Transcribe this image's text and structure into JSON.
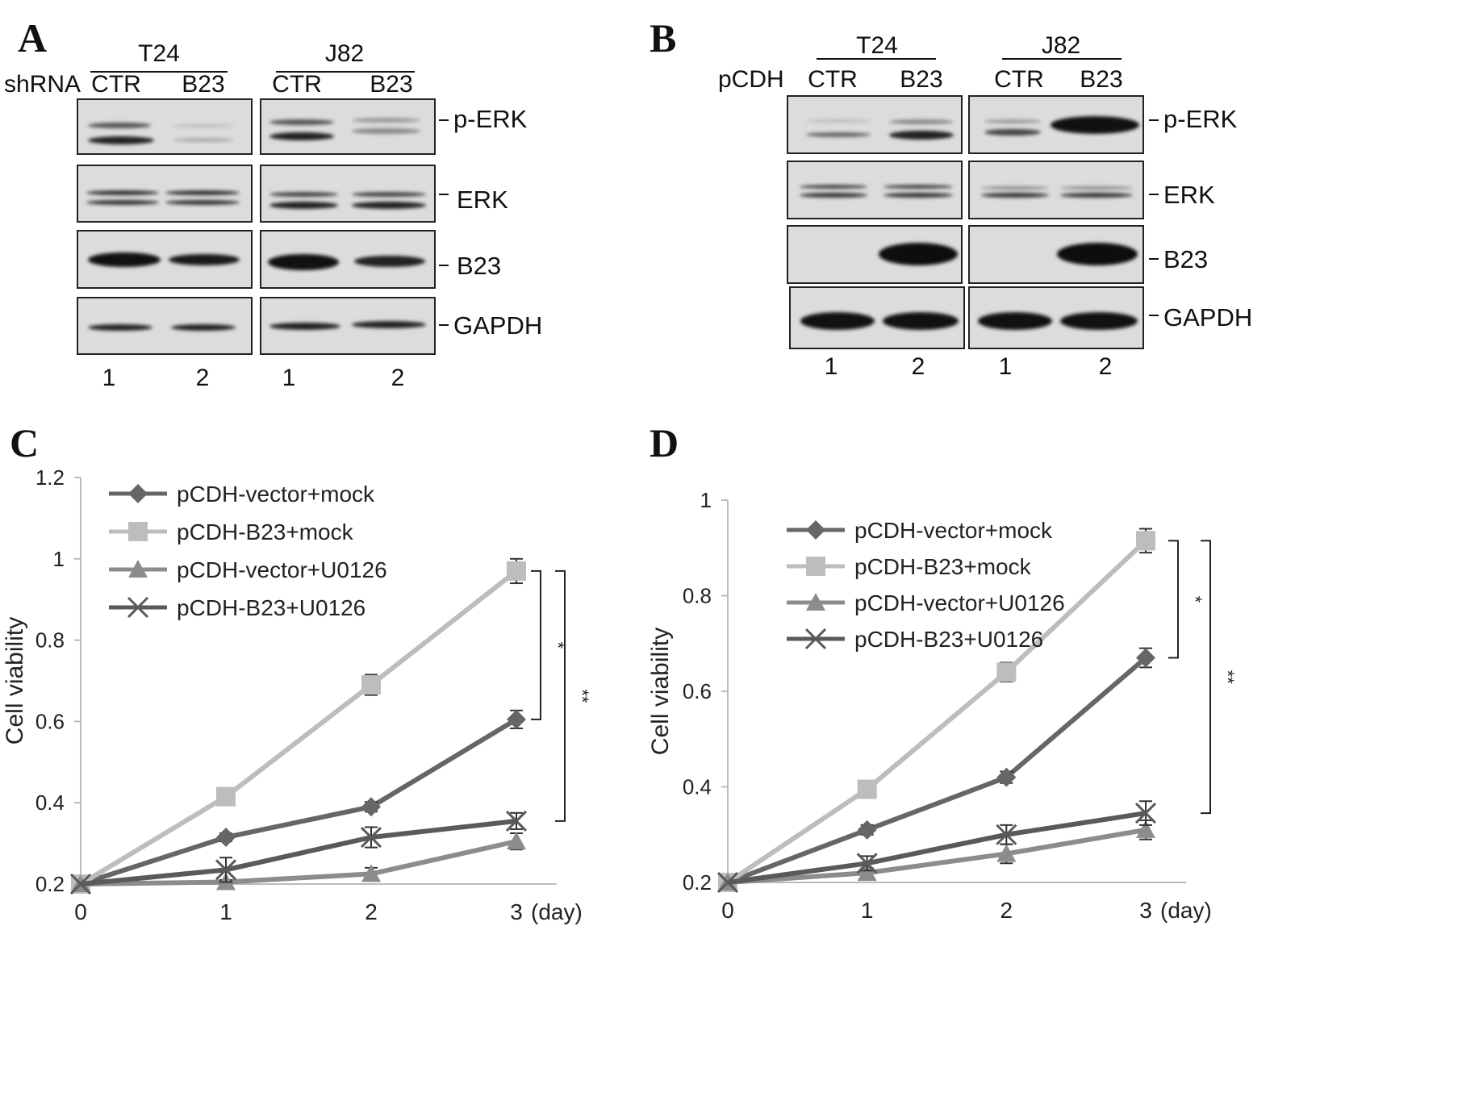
{
  "panel_a": {
    "label": "A",
    "row_label": "shRNA",
    "groups": [
      {
        "name": "T24",
        "lanes": [
          "CTR",
          "B23"
        ],
        "numbers": [
          "1",
          "2"
        ]
      },
      {
        "name": "J82",
        "lanes": [
          "CTR",
          "B23"
        ],
        "numbers": [
          "1",
          "2"
        ]
      }
    ],
    "blots": [
      "p-ERK",
      "ERK",
      "B23",
      "GAPDH"
    ]
  },
  "panel_b": {
    "label": "B",
    "row_label": "pCDH",
    "groups": [
      {
        "name": "T24",
        "lanes": [
          "CTR",
          "B23"
        ],
        "numbers": [
          "1",
          "2"
        ]
      },
      {
        "name": "J82",
        "lanes": [
          "CTR",
          "B23"
        ],
        "numbers": [
          "1",
          "2"
        ]
      }
    ],
    "blots": [
      "p-ERK",
      "ERK",
      "B23",
      "GAPDH"
    ]
  },
  "chart_data": [
    {
      "panel": "C",
      "type": "line",
      "x": [
        0,
        1,
        2,
        3
      ],
      "x_tick_labels": [
        "0",
        "1",
        "2",
        "3"
      ],
      "x_unit": "(day)",
      "ylabel": "Cell viability",
      "ylim": [
        0.2,
        1.2
      ],
      "yticks": [
        "0.2",
        "0.4",
        "0.6",
        "0.8",
        "1",
        "1.2"
      ],
      "legend_position": "top-left",
      "series": [
        {
          "name": "pCDH-vector+mock",
          "marker": "diamond",
          "color": "#666666",
          "values": [
            0.2,
            0.315,
            0.39,
            0.605
          ],
          "errors": [
            0,
            0.01,
            0.012,
            0.022
          ]
        },
        {
          "name": "pCDH-B23+mock",
          "marker": "square",
          "color": "#bdbdbd",
          "values": [
            0.2,
            0.415,
            0.69,
            0.97
          ],
          "errors": [
            0,
            0.015,
            0.025,
            0.03
          ]
        },
        {
          "name": "pCDH-vector+U0126",
          "marker": "triangle",
          "color": "#8c8c8c",
          "values": [
            0.2,
            0.205,
            0.225,
            0.305
          ],
          "errors": [
            0,
            0.005,
            0.015,
            0.02
          ]
        },
        {
          "name": "pCDH-B23+U0126",
          "marker": "x",
          "color": "#5a5a5a",
          "values": [
            0.2,
            0.235,
            0.315,
            0.355
          ],
          "errors": [
            0,
            0.03,
            0.025,
            0.02
          ]
        }
      ],
      "significance": [
        {
          "label": "*",
          "from_series": 1,
          "to_series": 0
        },
        {
          "label": "**",
          "from_series": 1,
          "to_series": 3
        }
      ]
    },
    {
      "panel": "D",
      "type": "line",
      "x": [
        0,
        1,
        2,
        3
      ],
      "x_tick_labels": [
        "0",
        "1",
        "2",
        "3"
      ],
      "x_unit": "(day)",
      "ylabel": "Cell viability",
      "ylim": [
        0.2,
        1.0
      ],
      "yticks": [
        "0.2",
        "0.4",
        "0.6",
        "0.8",
        "1"
      ],
      "legend_position": "top-left",
      "series": [
        {
          "name": "pCDH-vector+mock",
          "marker": "diamond",
          "color": "#666666",
          "values": [
            0.2,
            0.31,
            0.42,
            0.67
          ],
          "errors": [
            0,
            0.01,
            0.012,
            0.02
          ]
        },
        {
          "name": "pCDH-B23+mock",
          "marker": "square",
          "color": "#bdbdbd",
          "values": [
            0.2,
            0.395,
            0.64,
            0.915
          ],
          "errors": [
            0,
            0.01,
            0.02,
            0.025
          ]
        },
        {
          "name": "pCDH-vector+U0126",
          "marker": "triangle",
          "color": "#8c8c8c",
          "values": [
            0.2,
            0.22,
            0.26,
            0.31
          ],
          "errors": [
            0,
            0.01,
            0.02,
            0.02
          ]
        },
        {
          "name": "pCDH-B23+U0126",
          "marker": "x",
          "color": "#5a5a5a",
          "values": [
            0.2,
            0.24,
            0.3,
            0.345
          ],
          "errors": [
            0,
            0.015,
            0.02,
            0.025
          ]
        }
      ],
      "significance": [
        {
          "label": "*",
          "from_series": 1,
          "to_series": 0
        },
        {
          "label": "**",
          "from_series": 1,
          "to_series": 3
        }
      ]
    }
  ]
}
